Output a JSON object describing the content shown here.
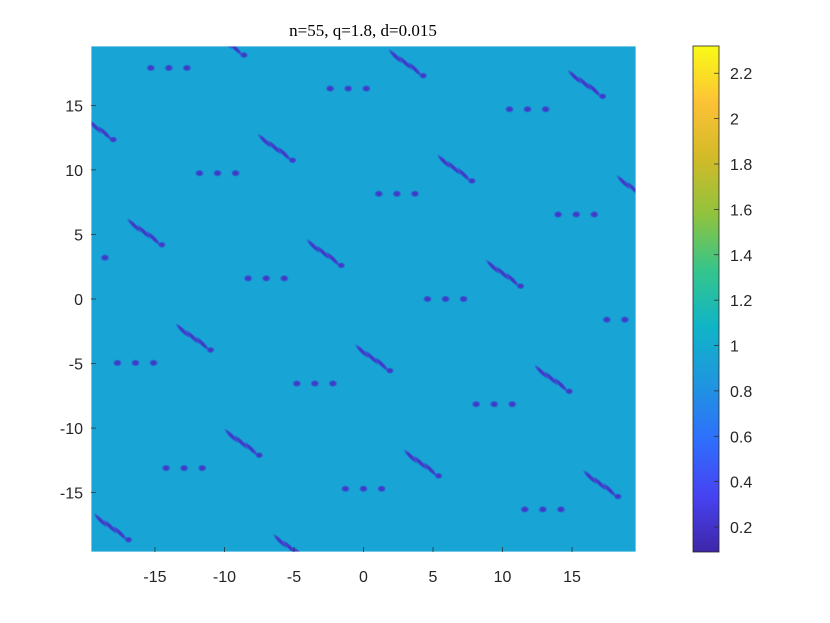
{
  "chart_data": {
    "type": "heatmap",
    "title": "n=55, q=1.8, d=0.015",
    "xlabel": "",
    "ylabel": "",
    "xlim": [
      -19.6,
      19.6
    ],
    "ylim": [
      -19.6,
      19.6
    ],
    "x_ticks": [
      -15,
      -10,
      -5,
      0,
      5,
      10,
      15
    ],
    "y_ticks": [
      15,
      10,
      5,
      0,
      -5,
      -10,
      -15
    ],
    "x_tick_labels": [
      "-15",
      "-10",
      "-5",
      "0",
      "5",
      "10",
      "15"
    ],
    "y_tick_labels": [
      "15",
      "10",
      "5",
      "0",
      "-5",
      "-10",
      "-15"
    ],
    "background_value": 0.95,
    "value_range": [
      0.09,
      2.32
    ],
    "colormap": "parula",
    "colormap_stops": [
      "#3e26a8",
      "#4743f2",
      "#2e6ffc",
      "#1f96df",
      "#10b4c7",
      "#34c58c",
      "#8fc33d",
      "#d2ba28",
      "#fcc236",
      "#f9fb15"
    ],
    "colorbar": {
      "ticks": [
        2.2,
        2,
        1.8,
        1.6,
        1.4,
        1.2,
        1,
        0.8,
        0.6,
        0.4,
        0.2
      ],
      "tick_labels": [
        "2.2",
        "2",
        "1.8",
        "1.6",
        "1.4",
        "1.2",
        "1",
        "0.8",
        "0.6",
        "0.4",
        "0.2"
      ]
    },
    "pattern": {
      "spot_value": 0.2,
      "lattice_vectors": [
        [
          9.4,
          6.55
        ],
        [
          12.9,
          -1.6
        ]
      ],
      "triplet_offsets": [
        [
          -0.9,
          0.8
        ],
        [
          -0.2,
          0.3
        ],
        [
          0.5,
          -0.2
        ]
      ],
      "triplet_label": "diagonal triplets",
      "dot_row_offsets": [
        [
          -1.3,
          0
        ],
        [
          0,
          0
        ],
        [
          1.3,
          0
        ]
      ],
      "dot_row_anchor": [
        -4.3,
        -1.7
      ],
      "spot_anchor": [
        -2.7,
        3.3
      ]
    },
    "grid": false,
    "legend": "none"
  }
}
